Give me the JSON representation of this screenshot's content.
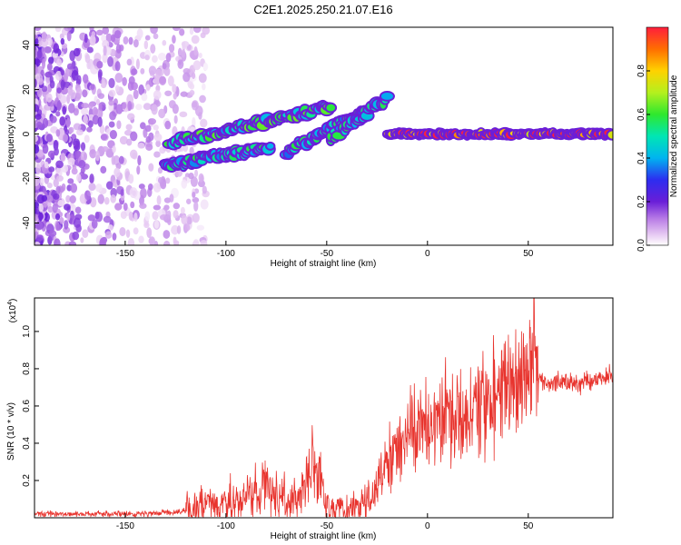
{
  "figure_title": "C2E1.2025.250.21.07.E16",
  "colors": {
    "snr_line": "#e8342e",
    "background": "#ffffff",
    "axes": "#000000"
  },
  "chart_data": [
    {
      "type": "heatmap",
      "title": "C2E1.2025.250.21.07.E16",
      "xlabel": "Height of straight line (km)",
      "ylabel": "Frequency (Hz)",
      "xlim": [
        -195,
        92
      ],
      "ylim": [
        -50,
        48
      ],
      "x_ticks": [
        -150,
        -100,
        -50,
        0,
        50
      ],
      "y_ticks": [
        -40,
        -20,
        0,
        20,
        40
      ],
      "colorbar": {
        "label": "Normalized spectral amplitude",
        "range": [
          0,
          1
        ],
        "ticks": [
          0.0,
          0.2,
          0.4,
          0.6,
          0.8
        ],
        "tick_labels": [
          "0.0",
          "0.2",
          "0.4",
          "0.6",
          "0.8"
        ],
        "colormap": "rainbow (violet-blue-cyan-green-yellow-red)"
      },
      "features": [
        {
          "name": "noise",
          "x_range": [
            -195,
            -120
          ],
          "freq_range": [
            -50,
            48
          ],
          "amplitude": 0.15
        },
        {
          "name": "upper branch",
          "from": [
            -128,
            -4
          ],
          "to": [
            -48,
            12
          ],
          "amplitude": 0.5
        },
        {
          "name": "lower branch",
          "from": [
            -130,
            -14
          ],
          "to": [
            -78,
            -6
          ],
          "amplitude": 0.45
        },
        {
          "name": "middle branch",
          "from": [
            -70,
            -8
          ],
          "to": [
            -32,
            10
          ],
          "amplitude": 0.45
        },
        {
          "name": "late branch",
          "from": [
            -48,
            -2
          ],
          "to": [
            -20,
            16
          ],
          "amplitude": 0.45
        },
        {
          "name": "steady tone",
          "from": [
            -20,
            0
          ],
          "to": [
            92,
            0
          ],
          "amplitude": 0.95
        }
      ]
    },
    {
      "type": "line",
      "xlabel": "Height of straight line (km)",
      "ylabel": "SNR (10 * v/v)",
      "y_multiplier": "(x10^4)",
      "y_multiplier_base": "(x10",
      "y_multiplier_exp": "4",
      "y_multiplier_close": ")",
      "xlim": [
        -195,
        92
      ],
      "ylim": [
        0,
        1.18
      ],
      "x_ticks": [
        -150,
        -100,
        -50,
        0,
        50
      ],
      "y_ticks": [
        0.2,
        0.4,
        0.6,
        0.8,
        1.0
      ],
      "y_tick_labels": [
        "0.2",
        "0.4",
        "0.6",
        "0.8",
        "1.0"
      ],
      "series": [
        {
          "name": "SNR",
          "x": [
            -195,
            -180,
            -160,
            -140,
            -125,
            -115,
            -105,
            -100,
            -95,
            -90,
            -85,
            -80,
            -75,
            -70,
            -65,
            -60,
            -57,
            -55,
            -52,
            -50,
            -45,
            -40,
            -35,
            -30,
            -25,
            -22,
            -20,
            -15,
            -10,
            -5,
            0,
            5,
            10,
            15,
            20,
            25,
            30,
            35,
            40,
            45,
            50,
            52,
            55,
            60,
            65,
            70,
            75,
            80,
            85,
            90,
            92
          ],
          "y": [
            0.02,
            0.02,
            0.02,
            0.02,
            0.03,
            0.05,
            0.07,
            0.09,
            0.1,
            0.12,
            0.14,
            0.17,
            0.12,
            0.1,
            0.1,
            0.18,
            0.32,
            0.26,
            0.1,
            0.07,
            0.05,
            0.04,
            0.05,
            0.07,
            0.17,
            0.26,
            0.3,
            0.36,
            0.43,
            0.47,
            0.5,
            0.53,
            0.55,
            0.56,
            0.58,
            0.6,
            0.63,
            0.65,
            0.7,
            0.72,
            0.75,
            0.9,
            0.74,
            0.72,
            0.72,
            0.72,
            0.72,
            0.73,
            0.74,
            0.76,
            0.76
          ]
        }
      ]
    }
  ]
}
